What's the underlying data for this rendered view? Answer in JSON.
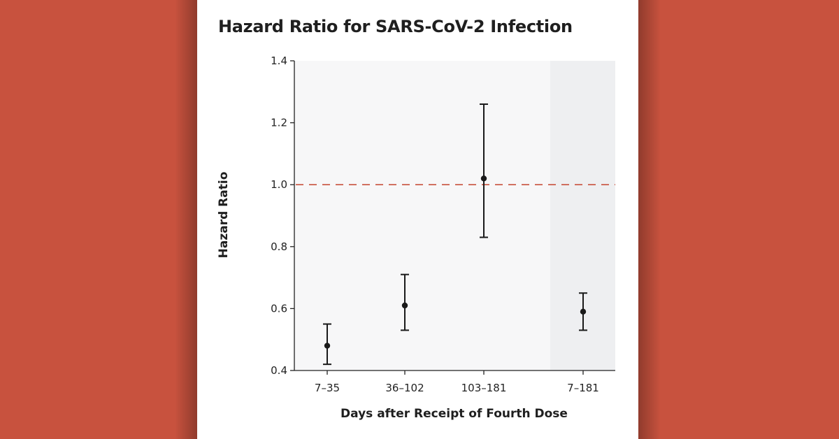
{
  "chart_data": {
    "type": "scatter",
    "title": "Hazard Ratio for SARS-CoV-2 Infection",
    "xlabel": "Days after Receipt of Fourth Dose",
    "ylabel": "Hazard Ratio",
    "ylim": [
      0.4,
      1.4
    ],
    "yticks": [
      0.4,
      0.6,
      0.8,
      1.0,
      1.2,
      1.4
    ],
    "ytick_labels": [
      "0.4",
      "0.6",
      "0.8",
      "1.0",
      "1.2",
      "1.4"
    ],
    "categories": [
      "7–35",
      "36–102",
      "103–181",
      "7–181"
    ],
    "estimates": [
      0.48,
      0.61,
      1.02,
      0.59
    ],
    "ci_lower": [
      0.42,
      0.53,
      0.83,
      0.53
    ],
    "ci_upper": [
      0.55,
      0.71,
      1.26,
      0.65
    ],
    "reference_line": {
      "y": 1.0,
      "style": "dashed",
      "color": "#c8523e"
    },
    "highlighted_category": "7–181",
    "colors": {
      "background": "#c8523e",
      "card": "#ffffff",
      "plot_area": "#f7f7f8",
      "highlight_area": "#eeeff1",
      "marks": "#1a1a1a"
    },
    "grid": false
  }
}
